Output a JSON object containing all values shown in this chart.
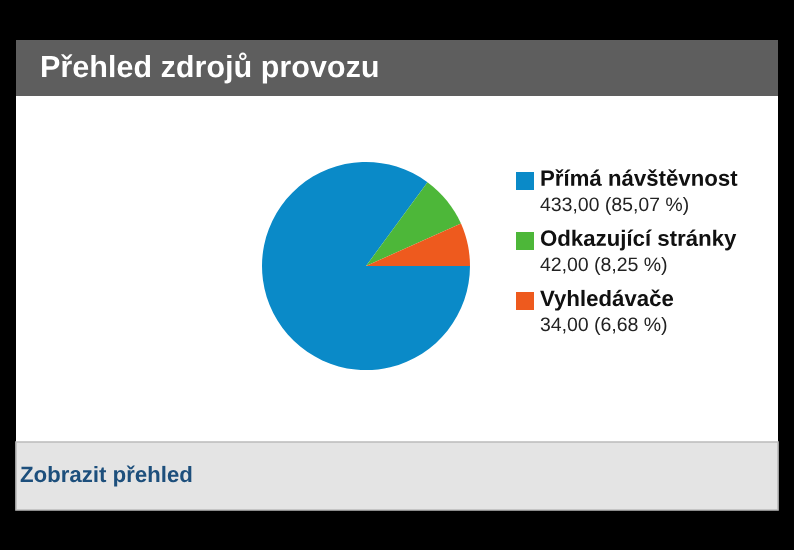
{
  "chart_data": {
    "type": "pie",
    "title": "Přehled zdrojů provozu",
    "categories": [
      "Přímá návštěvnost",
      "Odkazující stránky",
      "Vyhledávače"
    ],
    "values": [
      433,
      42,
      34
    ],
    "colors": [
      "#0a8ac8",
      "#4db739",
      "#ee5a1e"
    ],
    "value_labels": [
      "433,00 (85,07 %)",
      "42,00 (8,25 %)",
      "34,00 (6,68 %)"
    ],
    "legend": "right",
    "annotations": [
      "Zobrazit přehled"
    ]
  }
}
